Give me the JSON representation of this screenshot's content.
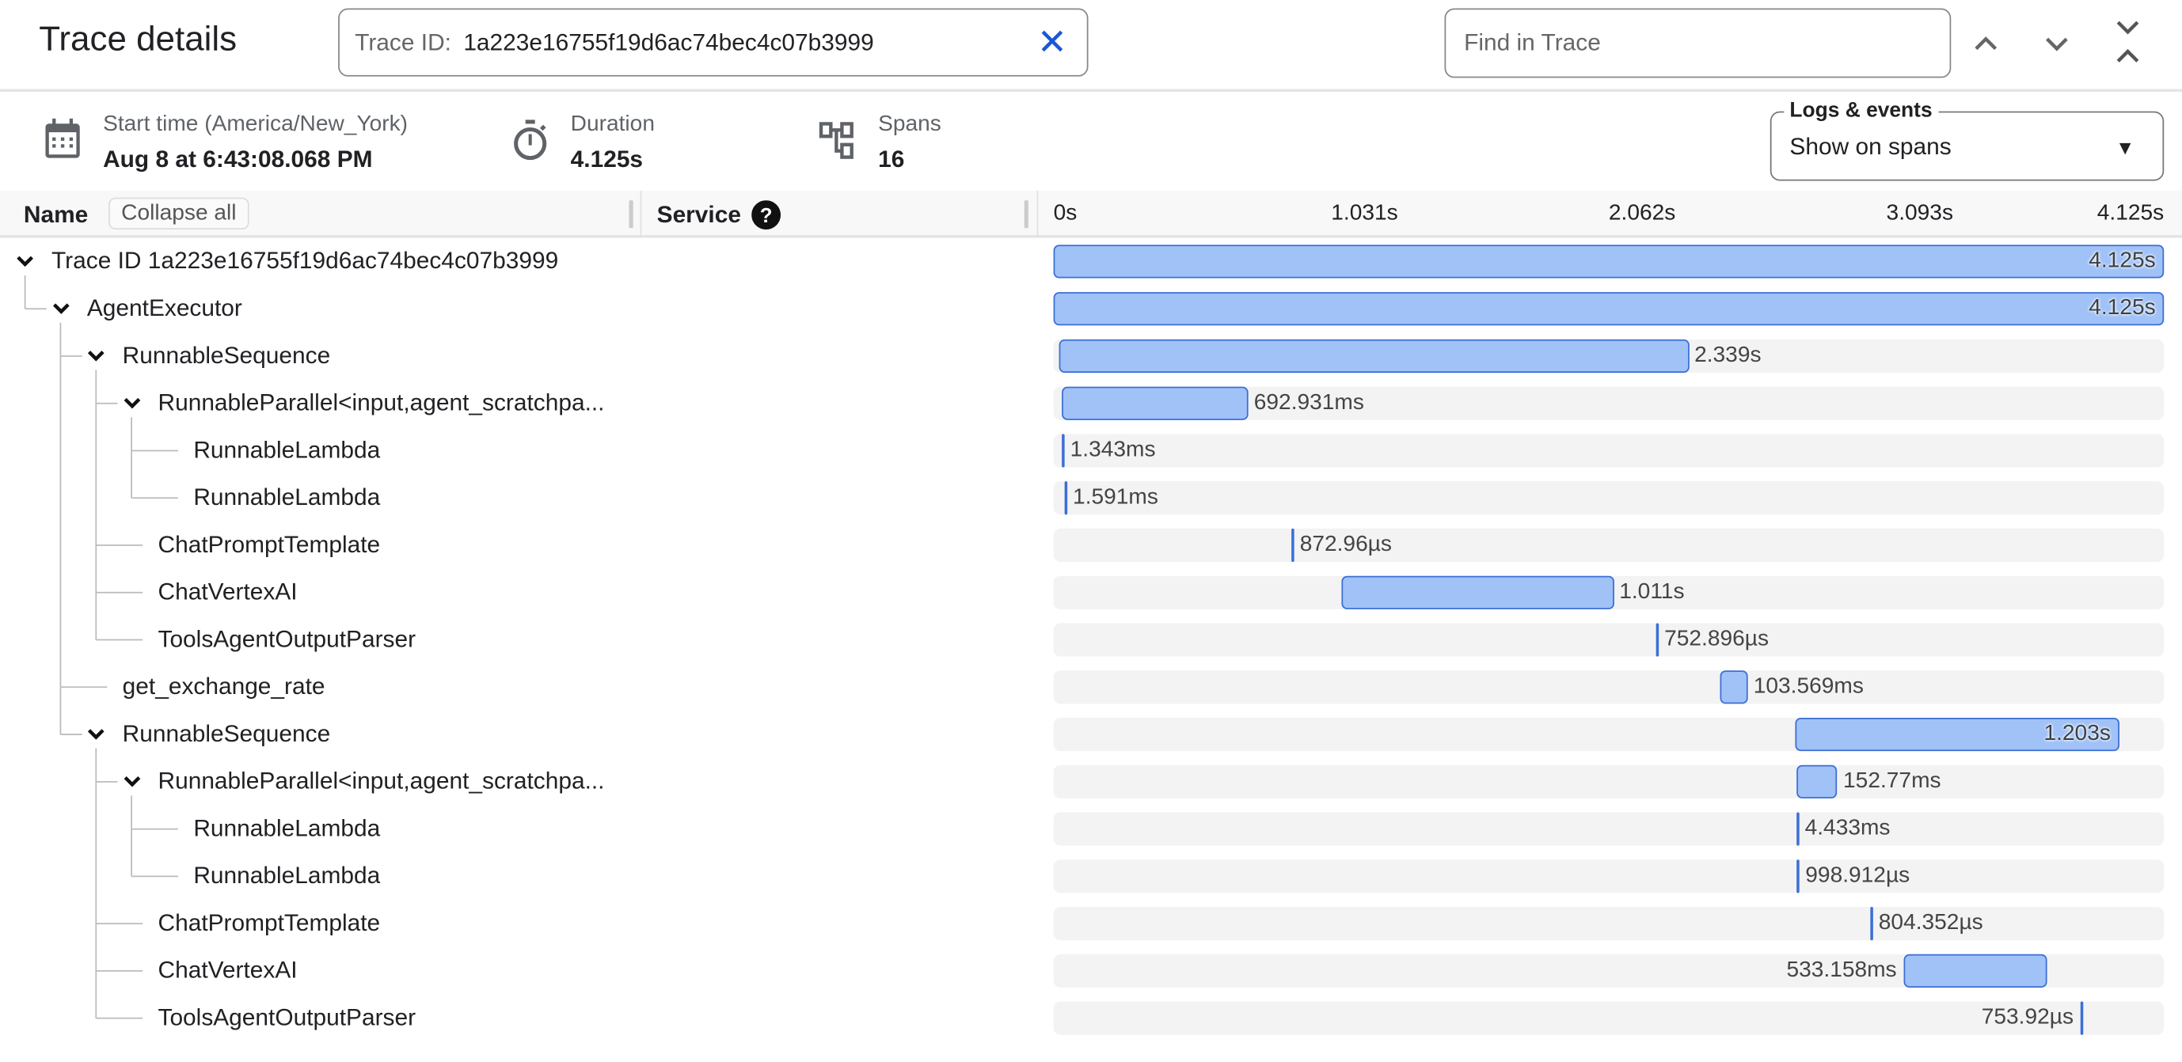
{
  "header": {
    "title": "Trace details",
    "trace_id_label": "Trace ID:",
    "trace_id_value": "1a223e16755f19d6ac74bec4c07b3999",
    "find_placeholder": "Find in Trace"
  },
  "info": {
    "start_label": "Start time (America/New_York)",
    "start_value": "Aug 8 at 6:43:08.068 PM",
    "duration_label": "Duration",
    "duration_value": "4.125s",
    "spans_label": "Spans",
    "spans_value": "16"
  },
  "logs": {
    "legend": "Logs & events",
    "value": "Show on spans"
  },
  "columns": {
    "name": "Name",
    "collapse_all": "Collapse all",
    "service": "Service"
  },
  "timeline": {
    "total_s": 4.125,
    "ticks": [
      "0s",
      "1.031s",
      "2.062s",
      "3.093s",
      "4.125s"
    ]
  },
  "colors": {
    "bar_fill": "#a1c2f7",
    "bar_border": "#3b6fd6",
    "accent": "#1a57d6"
  },
  "spans": [
    {
      "name": "Trace ID 1a223e16755f19d6ac74bec4c07b3999",
      "depth": 0,
      "expanded": true,
      "start_s": 0,
      "duration_s": 4.125,
      "label": "4.125s"
    },
    {
      "name": "AgentExecutor",
      "depth": 1,
      "expanded": true,
      "start_s": 0,
      "duration_s": 4.125,
      "label": "4.125s"
    },
    {
      "name": "RunnableSequence",
      "depth": 2,
      "expanded": true,
      "start_s": 0.021,
      "duration_s": 2.339,
      "label": "2.339s"
    },
    {
      "name": "RunnableParallel<input,agent_scratchpa...",
      "depth": 3,
      "expanded": true,
      "start_s": 0.031,
      "duration_s": 0.692931,
      "label": "692.931ms"
    },
    {
      "name": "RunnableLambda",
      "depth": 4,
      "start_s": 0.031,
      "duration_s": 0.001343,
      "label": "1.343ms"
    },
    {
      "name": "RunnableLambda",
      "depth": 4,
      "start_s": 0.041,
      "duration_s": 0.001591,
      "label": "1.591ms"
    },
    {
      "name": "ChatPromptTemplate",
      "depth": 3,
      "start_s": 0.884,
      "duration_s": 0.00087296,
      "label": "872.96µs"
    },
    {
      "name": "ChatVertexAI",
      "depth": 3,
      "start_s": 1.07,
      "duration_s": 1.011,
      "label": "1.011s"
    },
    {
      "name": "ToolsAgentOutputParser",
      "depth": 3,
      "start_s": 2.238,
      "duration_s": 0.000752896,
      "label": "752.896µs"
    },
    {
      "name": "get_exchange_rate",
      "depth": 2,
      "start_s": 2.476,
      "duration_s": 0.103569,
      "label": "103.569ms"
    },
    {
      "name": "RunnableSequence",
      "depth": 2,
      "expanded": true,
      "start_s": 2.755,
      "duration_s": 1.203,
      "label": "1.203s"
    },
    {
      "name": "RunnableParallel<input,agent_scratchpa...",
      "depth": 3,
      "expanded": true,
      "start_s": 2.76,
      "duration_s": 0.15277,
      "label": "152.77ms"
    },
    {
      "name": "RunnableLambda",
      "depth": 4,
      "start_s": 2.76,
      "duration_s": 0.004433,
      "label": "4.433ms"
    },
    {
      "name": "RunnableLambda",
      "depth": 4,
      "start_s": 2.762,
      "duration_s": 0.000998912,
      "label": "998.912µs"
    },
    {
      "name": "ChatPromptTemplate",
      "depth": 3,
      "start_s": 3.034,
      "duration_s": 0.000804352,
      "label": "804.352µs"
    },
    {
      "name": "ChatVertexAI",
      "depth": 3,
      "start_s": 3.158,
      "duration_s": 0.533158,
      "label": "533.158ms"
    },
    {
      "name": "ToolsAgentOutputParser",
      "depth": 3,
      "start_s": 3.815,
      "duration_s": 0.00075392,
      "label": "753.92µs"
    }
  ]
}
